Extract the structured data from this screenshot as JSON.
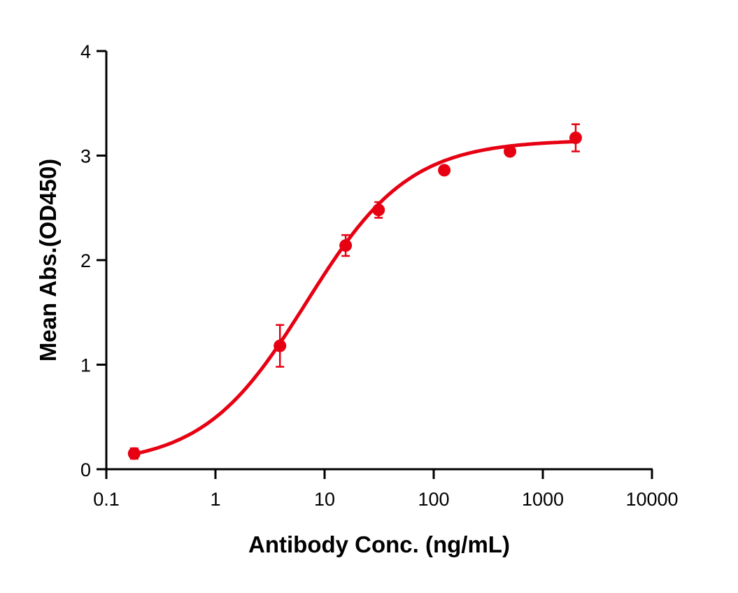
{
  "chart_data": {
    "type": "scatter",
    "title": "",
    "xlabel": "Antibody Conc. (ng/mL)",
    "ylabel": "Mean Abs.(OD450)",
    "xscale": "log",
    "xlim": [
      0.1,
      10000
    ],
    "ylim": [
      0,
      4
    ],
    "xticks": [
      0.1,
      1,
      10,
      100,
      1000,
      10000
    ],
    "xtick_labels": [
      "0.1",
      "1",
      "10",
      "100",
      "1000",
      "10000"
    ],
    "yticks": [
      0,
      1,
      2,
      3,
      4
    ],
    "ytick_labels": [
      "0",
      "1",
      "2",
      "3",
      "4"
    ],
    "grid": false,
    "color": "#e60012",
    "points": [
      {
        "x": 0.18,
        "y": 0.15,
        "err": 0.05
      },
      {
        "x": 3.9,
        "y": 1.18,
        "err": 0.2
      },
      {
        "x": 15.6,
        "y": 2.14,
        "err": 0.1
      },
      {
        "x": 31.25,
        "y": 2.48,
        "err": 0.075
      },
      {
        "x": 125,
        "y": 2.86,
        "err": 0.02
      },
      {
        "x": 500,
        "y": 3.04,
        "err": 0.02
      },
      {
        "x": 2000,
        "y": 3.17,
        "err": 0.13
      }
    ],
    "fit": {
      "model": "4PL",
      "bottom": 0.04,
      "top": 3.15,
      "ec50": 6.8,
      "hill": 0.92
    }
  }
}
